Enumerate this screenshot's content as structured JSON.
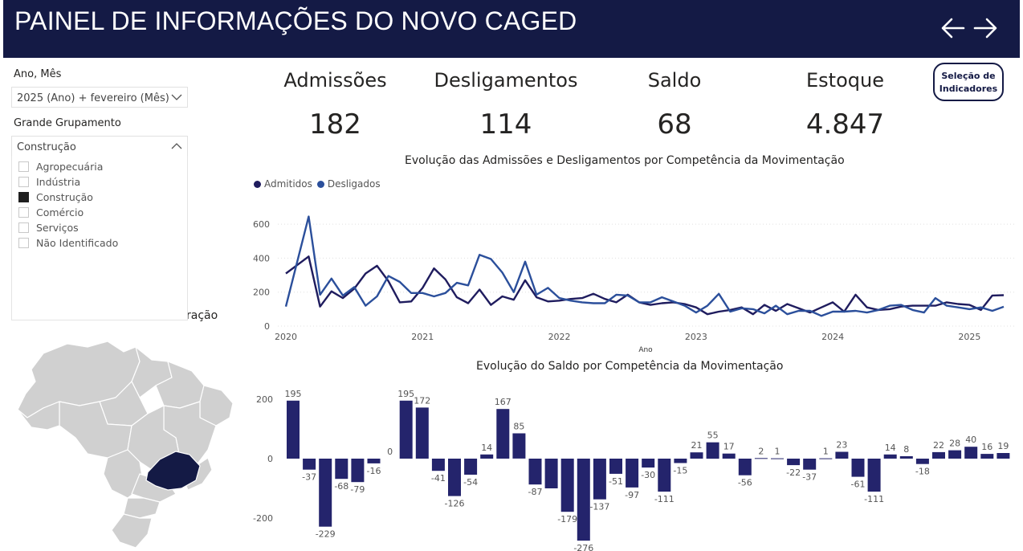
{
  "header": {
    "title": "PAINEL DE INFORMAÇÕES DO NOVO CAGED"
  },
  "nav": {
    "back_icon": "arrow-left-icon",
    "forward_icon": "arrow-right-icon"
  },
  "filters": {
    "period": {
      "label": "Ano, Mês",
      "value": "2025 (Ano) + fevereiro (Mês)"
    },
    "group": {
      "label": "Grande Grupamento",
      "value": "Construção",
      "options": [
        {
          "label": "Agropecuária",
          "checked": false
        },
        {
          "label": "Indústria",
          "checked": false
        },
        {
          "label": "Construção",
          "checked": true
        },
        {
          "label": "Comércio",
          "checked": false
        },
        {
          "label": "Serviços",
          "checked": false
        },
        {
          "label": "Não Identificado",
          "checked": false
        }
      ]
    }
  },
  "map": {
    "title_visible": "ração",
    "highlight_color": "#141a45",
    "base_color": "#d0d0d0"
  },
  "kpis": [
    {
      "label": "Admissões",
      "value": "182"
    },
    {
      "label": "Desligamentos",
      "value": "114"
    },
    {
      "label": "Saldo",
      "value": "68"
    },
    {
      "label": "Estoque",
      "value": "4.847"
    }
  ],
  "indicator_button": {
    "line1": "Seleção de",
    "line2": "Indicadores"
  },
  "colors": {
    "admitidos": "#1f1c5e",
    "desligados": "#2b4f9b",
    "bars": "#24246c",
    "header": "#141a45"
  },
  "chart_data": [
    {
      "type": "line",
      "title": "Evolução das Admissões e Desligamentos por Competência da Movimentação",
      "xlabel": "Ano",
      "ylabel": "",
      "ylim": [
        0,
        700
      ],
      "yticks": [
        0,
        200,
        400,
        600
      ],
      "xticks": [
        "2020",
        "2021",
        "2022",
        "2023",
        "2024",
        "2025"
      ],
      "x_start": 2020.0,
      "x_step": 0.0833,
      "legend": "top-left",
      "series": [
        {
          "name": "Admitidos",
          "values": [
            310,
            360,
            410,
            115,
            205,
            165,
            220,
            310,
            355,
            265,
            140,
            145,
            225,
            340,
            275,
            170,
            135,
            215,
            125,
            175,
            155,
            270,
            170,
            145,
            150,
            160,
            165,
            190,
            160,
            140,
            185,
            140,
            125,
            135,
            140,
            130,
            110,
            70,
            85,
            95,
            110,
            70,
            125,
            90,
            130,
            105,
            80,
            110,
            140,
            85,
            185,
            110,
            95,
            100,
            115,
            120,
            120,
            120,
            140,
            130,
            125,
            95,
            180,
            182
          ]
        },
        {
          "name": "Desligados",
          "values": [
            115,
            380,
            645,
            185,
            280,
            180,
            230,
            120,
            175,
            295,
            260,
            195,
            195,
            175,
            195,
            255,
            240,
            420,
            395,
            315,
            200,
            380,
            185,
            225,
            165,
            150,
            140,
            135,
            135,
            185,
            180,
            140,
            140,
            170,
            145,
            120,
            80,
            120,
            190,
            85,
            105,
            100,
            75,
            120,
            70,
            90,
            90,
            60,
            85,
            85,
            90,
            80,
            95,
            120,
            125,
            95,
            80,
            165,
            120,
            110,
            100,
            110,
            90,
            114
          ]
        }
      ]
    },
    {
      "type": "bar",
      "title": "Evolução do Saldo por Competência da Movimentação",
      "xlabel": "",
      "ylabel": "",
      "ylim": [
        -276,
        200
      ],
      "yticks": [
        -200,
        0,
        200
      ],
      "values": [
        195,
        -37,
        -229,
        -68,
        -79,
        -16,
        0,
        195,
        172,
        -41,
        -126,
        -54,
        14,
        167,
        85,
        -87,
        -100,
        -179,
        -276,
        -137,
        -51,
        -97,
        -30,
        -111,
        -15,
        21,
        55,
        17,
        -56,
        2,
        1,
        -22,
        -37,
        1,
        23,
        -61,
        -111,
        14,
        8,
        -18,
        22,
        28,
        40,
        16,
        19
      ],
      "data_labels": [
        "195",
        "-37",
        "-229",
        "-68",
        "-79",
        "-16",
        "0",
        "195",
        "172",
        "-41",
        "-126",
        "-54",
        "14",
        "167",
        "85",
        "-87",
        "",
        "-179",
        "-276",
        "-137",
        "-51",
        "-97",
        "-30",
        "-111",
        "-15",
        "21",
        "55",
        "17",
        "-56",
        "2",
        "1",
        "-22",
        "-37",
        "1",
        "23",
        "-61",
        "-111",
        "14",
        "8",
        "-18",
        "22",
        "28",
        "40",
        "16",
        "19"
      ]
    }
  ]
}
